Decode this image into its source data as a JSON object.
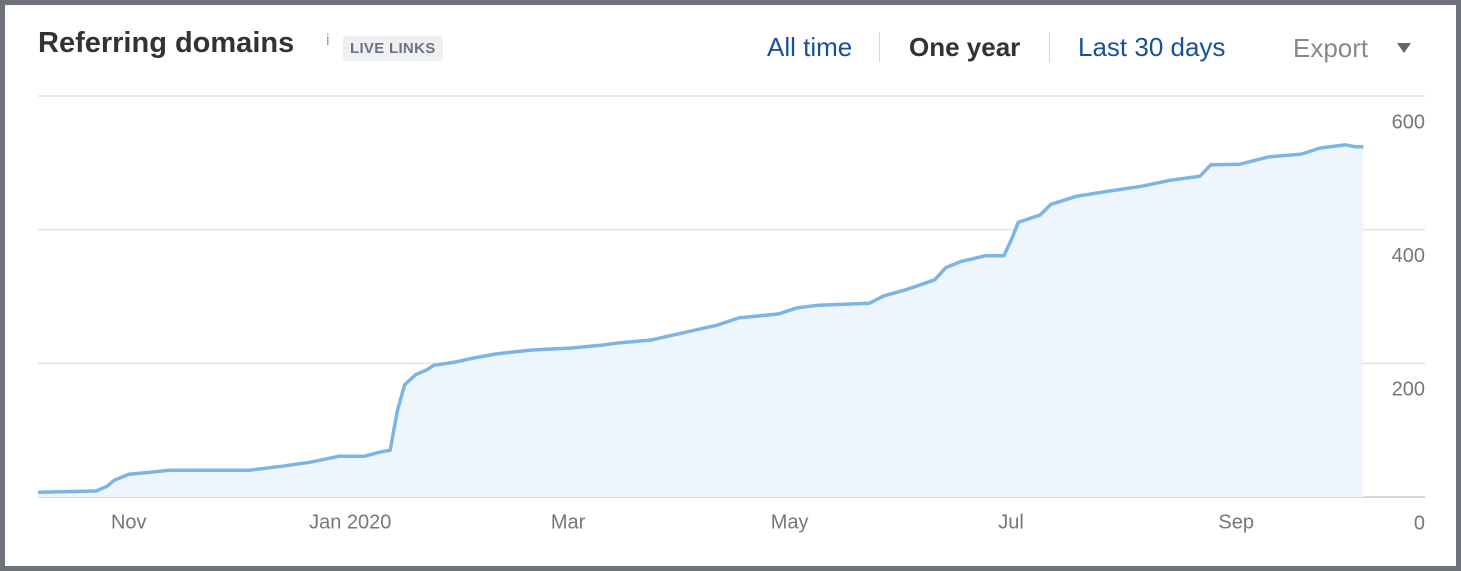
{
  "header": {
    "title": "Referring domains",
    "info": "i",
    "badge": "LIVE LINKS",
    "tabs": [
      "All time",
      "One year",
      "Last 30 days"
    ],
    "export": "Export"
  },
  "chart_data": {
    "type": "area",
    "color": "#7cb5e4",
    "fill": "#eef5fd",
    "grid": true,
    "x": [
      6,
      22,
      25,
      27,
      31,
      37,
      42,
      64,
      73,
      81,
      89,
      96,
      100,
      103,
      104,
      105,
      107,
      110,
      113,
      115,
      121,
      126,
      132,
      142,
      153,
      161,
      165,
      175,
      183,
      193,
      199,
      210,
      215,
      221,
      235,
      239,
      245,
      253,
      256,
      260,
      267,
      272,
      274,
      276,
      282,
      285,
      292,
      299,
      310,
      318,
      326,
      329,
      337,
      345,
      354,
      359,
      366,
      369,
      371
    ],
    "series": [
      {
        "name": "Referring domains",
        "values": [
          7,
          9,
          16,
          25,
          34,
          37,
          40,
          40,
          46,
          52,
          61,
          61,
          67,
          70,
          100,
          130,
          168,
          183,
          190,
          197,
          202,
          208,
          214,
          220,
          223,
          227,
          230,
          235,
          245,
          257,
          268,
          274,
          283,
          287,
          290,
          301,
          310,
          325,
          343,
          352,
          361,
          361,
          384,
          411,
          422,
          438,
          450,
          456,
          465,
          474,
          480,
          497,
          498,
          509,
          513,
          522,
          527,
          524,
          524
        ]
      }
    ],
    "xlim": [
      6,
      388
    ],
    "xticks": [
      {
        "value": 31,
        "label": "Nov"
      },
      {
        "value": 92,
        "label": "Jan 2020"
      },
      {
        "value": 152,
        "label": "Mar"
      },
      {
        "value": 213,
        "label": "May"
      },
      {
        "value": 274,
        "label": "Jul"
      },
      {
        "value": 336,
        "label": "Sep"
      }
    ],
    "ylim": [
      0,
      600
    ],
    "yticks": [
      0,
      200,
      400,
      600
    ]
  }
}
